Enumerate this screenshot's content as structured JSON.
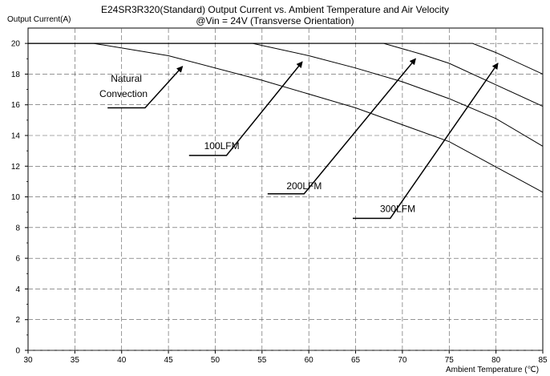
{
  "chart_data": {
    "type": "line",
    "title": "E24SR3R320(Standard)  Output Current vs. Ambient Temperature and Air Velocity",
    "subtitle": "@Vin = 24V (Transverse Orientation)",
    "xlabel": "Ambient Temperature (℃)",
    "ylabel": "Output Current(A)",
    "xlim": [
      30,
      85
    ],
    "ylim": [
      0,
      21
    ],
    "x_ticks": [
      "30",
      "35",
      "40",
      "45",
      "50",
      "55",
      "60",
      "65",
      "70",
      "75",
      "80",
      "85"
    ],
    "y_ticks": [
      "0",
      "2",
      "4",
      "6",
      "8",
      "10",
      "12",
      "14",
      "16",
      "18",
      "20"
    ],
    "grid": "dashed",
    "series": [
      {
        "name": "Natural Convection",
        "x": [
          30,
          37,
          45,
          55,
          65,
          75,
          85
        ],
        "y": [
          20,
          20,
          19.2,
          17.6,
          15.8,
          13.6,
          10.3
        ]
      },
      {
        "name": "100LFM",
        "x": [
          30,
          54,
          60,
          65,
          70,
          75,
          80,
          85
        ],
        "y": [
          20,
          20,
          19.2,
          18.4,
          17.5,
          16.4,
          15.1,
          13.3
        ]
      },
      {
        "name": "200LFM",
        "x": [
          30,
          68,
          72,
          75,
          80,
          85
        ],
        "y": [
          20,
          20,
          19.3,
          18.7,
          17.3,
          15.9
        ]
      },
      {
        "name": "300LFM",
        "x": [
          30,
          77.5,
          80,
          85
        ],
        "y": [
          20,
          20,
          19.4,
          18.0
        ]
      }
    ],
    "annotations": [
      {
        "label": "Natural",
        "text_x": 40.5,
        "text_y": 17.5
      },
      {
        "label": "Convection",
        "text_x": 40.2,
        "text_y": 16.5
      },
      {
        "label": "100LFM",
        "text_x": 50.7,
        "text_y": 13.1
      },
      {
        "label": "200LFM",
        "text_x": 59.5,
        "text_y": 10.5
      },
      {
        "label": "300LFM",
        "text_x": 69.5,
        "text_y": 9.0
      }
    ],
    "arrows": [
      {
        "points": [
          [
            38.5,
            15.8
          ],
          [
            42.5,
            15.8
          ],
          [
            46.5,
            18.5
          ]
        ]
      },
      {
        "points": [
          [
            47.2,
            12.7
          ],
          [
            51.2,
            12.7
          ],
          [
            59.3,
            18.8
          ]
        ]
      },
      {
        "points": [
          [
            55.6,
            10.2
          ],
          [
            59.5,
            10.2
          ],
          [
            71.4,
            19.0
          ]
        ]
      },
      {
        "points": [
          [
            64.7,
            8.6
          ],
          [
            68.7,
            8.6
          ],
          [
            80.2,
            18.7
          ]
        ]
      }
    ]
  }
}
